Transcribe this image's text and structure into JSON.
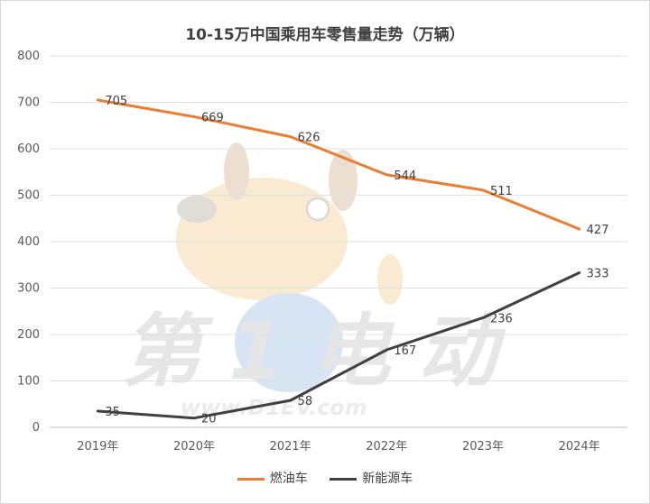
{
  "chart_data": {
    "type": "line",
    "title": "10-15万中国乘用车零售量走势（万辆）",
    "categories": [
      "2019年",
      "2020年",
      "2021年",
      "2022年",
      "2023年",
      "2024年"
    ],
    "ylim": [
      0,
      800
    ],
    "yticks": [
      0,
      100,
      200,
      300,
      400,
      500,
      600,
      700,
      800
    ],
    "grid": true,
    "legend_position": "bottom",
    "series": [
      {
        "name": "燃油车",
        "color": "#ed7d31",
        "values": [
          705,
          669,
          626,
          544,
          511,
          427
        ]
      },
      {
        "name": "新能源车",
        "color": "#404040",
        "values": [
          35,
          20,
          58,
          167,
          236,
          333
        ]
      }
    ]
  },
  "watermark": {
    "text": "第1电动",
    "url_text": "www.D1EV.com"
  }
}
